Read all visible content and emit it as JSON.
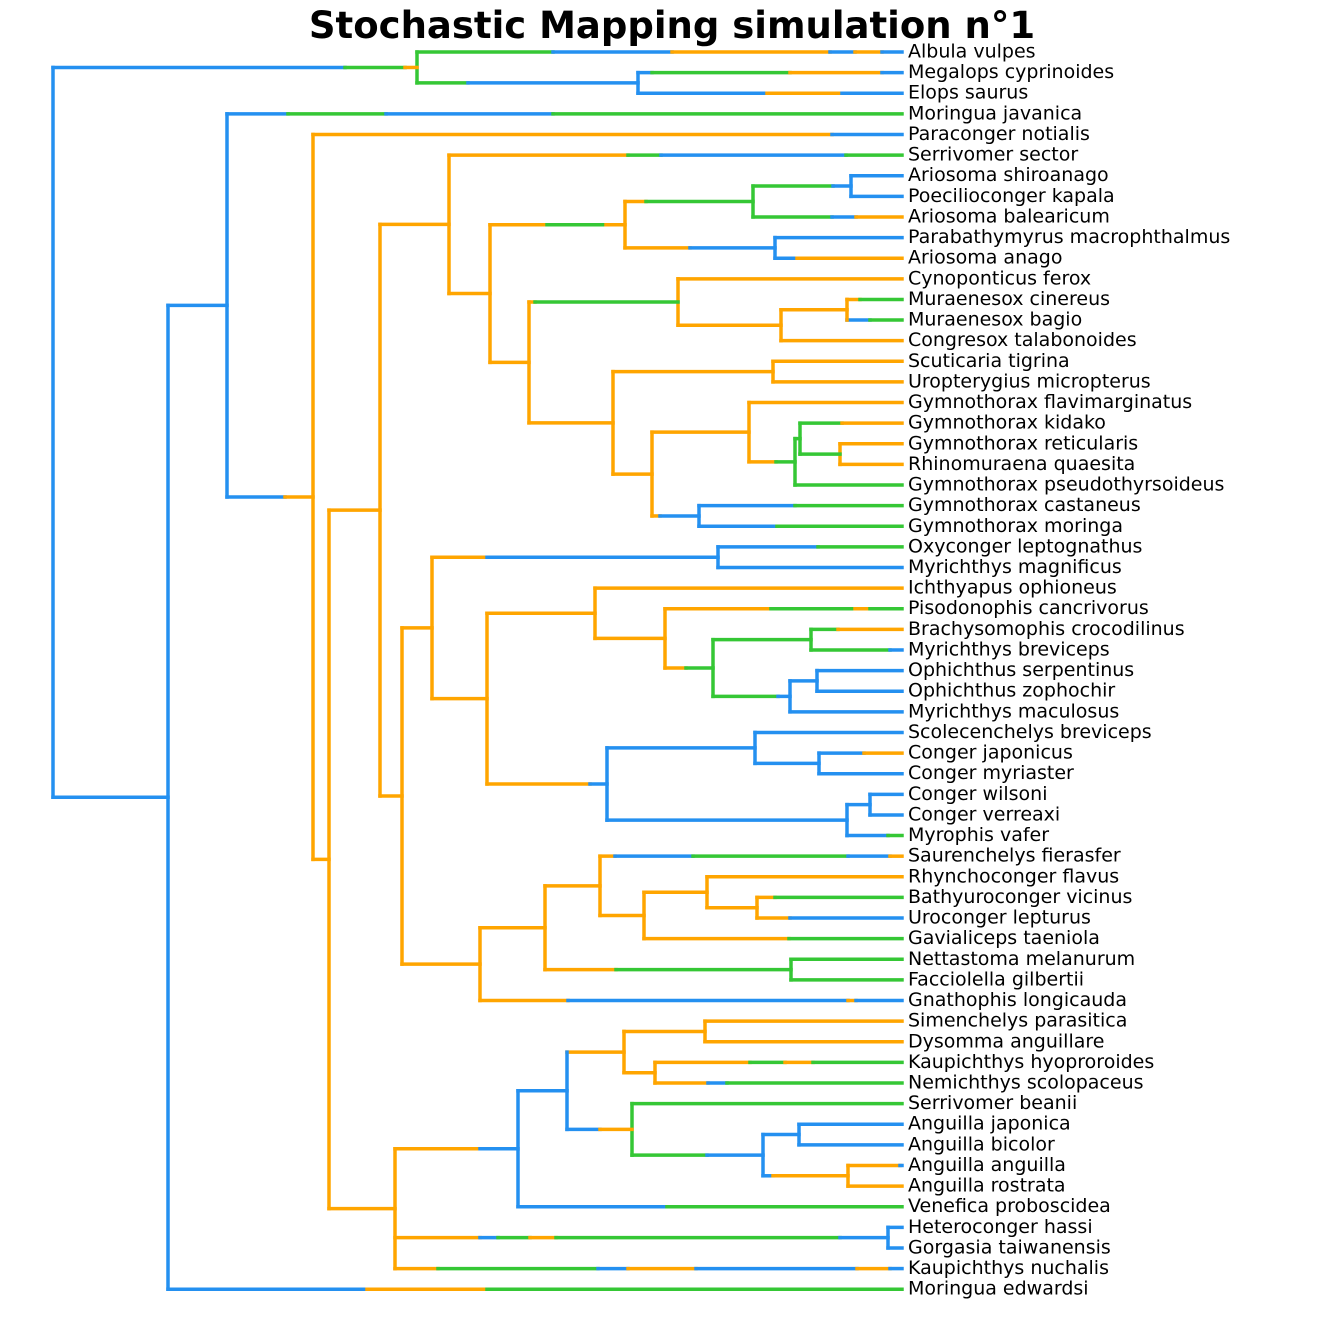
{
  "title": "Stochastic Mapping simulation n°1",
  "tips": [
    "Albula vulpes",
    "Megalops cyprinoides",
    "Elops saurus",
    "Moringua javanica",
    "Paraconger notialis",
    "Serrivomer sector",
    "Ariosoma shiroanago",
    "Poecilioconger kapala",
    "Ariosoma balearicum",
    "Parabathymyrus macrophthalmus",
    "Ariosoma anago",
    "Cynoponticus ferox",
    "Muraenesox cinereus",
    "Muraenesox bagio",
    "Congresox talabonoides",
    "Scuticaria tigrina",
    "Uropterygius micropterus",
    "Gymnothorax flavimarginatus",
    "Gymnothorax kidako",
    "Gymnothorax reticularis",
    "Rhinomuraena quaesita",
    "Gymnothorax pseudothyrsoideus",
    "Gymnothorax castaneus",
    "Gymnothorax moringa",
    "Oxyconger leptognathus",
    "Myrichthys magnificus",
    "Ichthyapus ophioneus",
    "Pisodonophis cancrivorus",
    "Brachysomophis crocodilinus",
    "Myrichthys breviceps",
    "Ophichthus serpentinus",
    "Ophichthus zophochir",
    "Myrichthys maculosus",
    "Scolecenchelys breviceps",
    "Conger japonicus",
    "Conger myriaster",
    "Conger wilsoni",
    "Conger verreaxi",
    "Myrophis vafer",
    "Saurenchelys fierasfer",
    "Rhynchoconger flavus",
    "Bathyuroconger vicinus",
    "Uroconger lepturus",
    "Gavialiceps taeniola",
    "Nettastoma melanurum",
    "Facciolella gilbertii",
    "Gnathophis longicauda",
    "Simenchelys parasitica",
    "Dysomma anguillare",
    "Kaupichthys hyoproroides",
    "Nemichthys scolopaceus",
    "Serrivomer beanii",
    "Anguilla japonica",
    "Anguilla bicolor",
    "Anguilla anguilla",
    "Anguilla rostrata",
    "Venefica proboscidea",
    "Heteroconger hassi",
    "Gorgasia taiwanensis",
    "Kaupichthys nuchalis",
    "Moringua edwardsi"
  ]
}
